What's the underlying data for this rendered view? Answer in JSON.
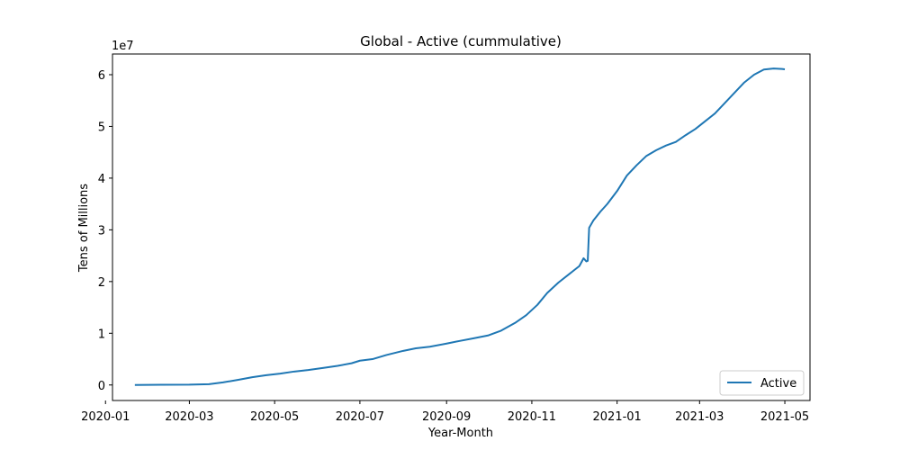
{
  "chart_data": {
    "type": "line",
    "title": "Global - Active (cummulative)",
    "xlabel": "Year-Month",
    "ylabel": "Tens of Millions",
    "y_offset_label": "1e7",
    "x_tick_labels": [
      "2020-01",
      "2020-03",
      "2020-05",
      "2020-07",
      "2020-09",
      "2020-11",
      "2021-01",
      "2021-03",
      "2021-05"
    ],
    "y_tick_labels": [
      "0",
      "1",
      "2",
      "3",
      "4",
      "5",
      "6"
    ],
    "y_ticks": [
      0,
      10000000,
      20000000,
      30000000,
      40000000,
      50000000,
      60000000
    ],
    "xlim": [
      "2020-01-06",
      "2021-05-19"
    ],
    "ylim": [
      -3000000,
      64000000
    ],
    "grid": false,
    "legend_position": "lower right",
    "series": [
      {
        "name": "Active",
        "color": "#1f77b4",
        "x": [
          "2020-01-22",
          "2020-02-10",
          "2020-03-01",
          "2020-03-15",
          "2020-03-25",
          "2020-04-05",
          "2020-04-15",
          "2020-04-25",
          "2020-05-05",
          "2020-05-15",
          "2020-05-25",
          "2020-06-05",
          "2020-06-15",
          "2020-06-25",
          "2020-07-01",
          "2020-07-10",
          "2020-07-20",
          "2020-08-01",
          "2020-08-10",
          "2020-08-20",
          "2020-09-01",
          "2020-09-10",
          "2020-09-20",
          "2020-10-01",
          "2020-10-10",
          "2020-10-20",
          "2020-10-28",
          "2020-11-05",
          "2020-11-12",
          "2020-11-20",
          "2020-11-28",
          "2020-12-05",
          "2020-12-08",
          "2020-12-10",
          "2020-12-11",
          "2020-12-12",
          "2020-12-15",
          "2020-12-20",
          "2020-12-25",
          "2021-01-01",
          "2021-01-08",
          "2021-01-15",
          "2021-01-22",
          "2021-01-29",
          "2021-02-05",
          "2021-02-12",
          "2021-02-19",
          "2021-02-26",
          "2021-03-05",
          "2021-03-12",
          "2021-03-19",
          "2021-03-26",
          "2021-04-02",
          "2021-04-09",
          "2021-04-16",
          "2021-04-23",
          "2021-04-29",
          "2021-05-01"
        ],
        "values": [
          0,
          50000,
          60000,
          150000,
          500000,
          1000000,
          1500000,
          1900000,
          2200000,
          2600000,
          2900000,
          3300000,
          3700000,
          4200000,
          4700000,
          5000000,
          5800000,
          6600000,
          7100000,
          7400000,
          8000000,
          8500000,
          9000000,
          9600000,
          10500000,
          12000000,
          13500000,
          15500000,
          17800000,
          19800000,
          21500000,
          23000000,
          24500000,
          23900000,
          24000000,
          30400000,
          31800000,
          33500000,
          35000000,
          37500000,
          40500000,
          42500000,
          44300000,
          45400000,
          46300000,
          47000000,
          48300000,
          49500000,
          51000000,
          52500000,
          54500000,
          56500000,
          58500000,
          60000000,
          61000000,
          61200000,
          61100000,
          61050000
        ]
      }
    ]
  }
}
